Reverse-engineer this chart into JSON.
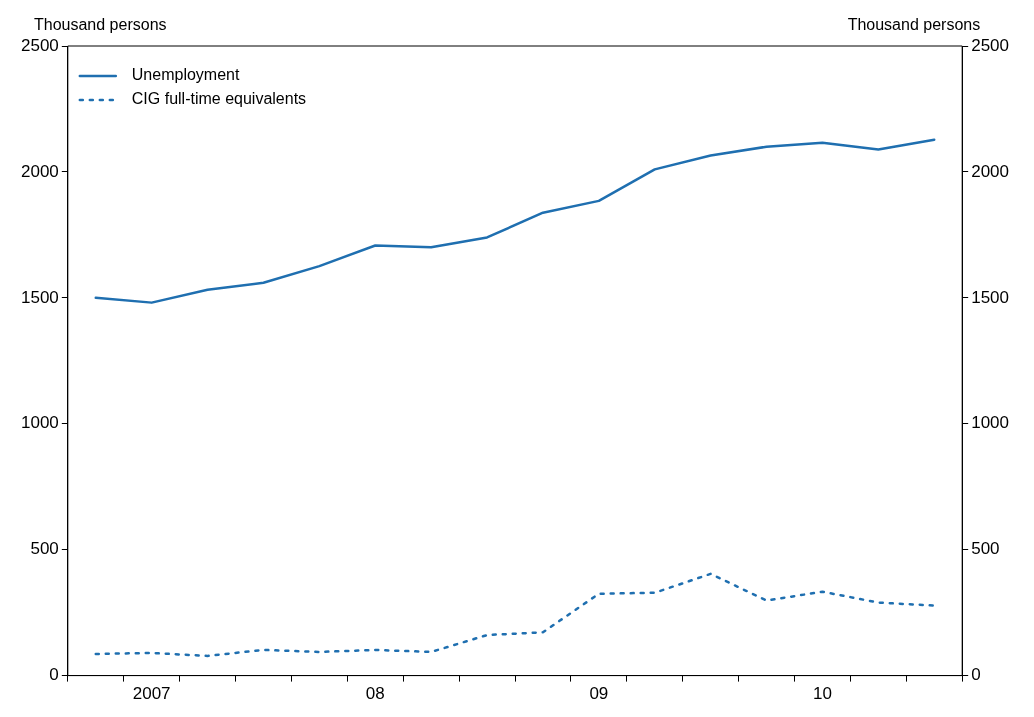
{
  "chart_data": {
    "type": "line",
    "ylabel": "Thousand persons",
    "y2label": "Thousand persons",
    "categories": [
      null,
      "2007",
      null,
      null,
      null,
      "08",
      null,
      null,
      null,
      "09",
      null,
      null,
      null,
      "10",
      null,
      null
    ],
    "series": [
      {
        "name": "Unemployment",
        "color": "#1f6fb0",
        "line_style": "solid",
        "values": [
          1500,
          1481,
          1532,
          1560,
          1626,
          1708,
          1701,
          1740,
          1838,
          1885,
          2010,
          2065,
          2100,
          2116,
          2089,
          2128
        ]
      },
      {
        "name": "CIG full-time equivalents",
        "color": "#1f6fb0",
        "line_style": "dotted",
        "values": [
          86,
          90,
          78,
          102,
          94,
          102,
          94,
          161,
          172,
          325,
          329,
          404,
          298,
          333,
          290,
          278
        ]
      }
    ],
    "ylim": [
      0,
      2500
    ],
    "yticks": [
      0,
      500,
      1000,
      1500,
      2000,
      2500
    ],
    "y2lim": [
      0,
      2500
    ],
    "y2ticks": [
      0,
      500,
      1000,
      1500,
      2000,
      2500
    ],
    "grid": false,
    "legend": "top left",
    "marker": "none"
  }
}
